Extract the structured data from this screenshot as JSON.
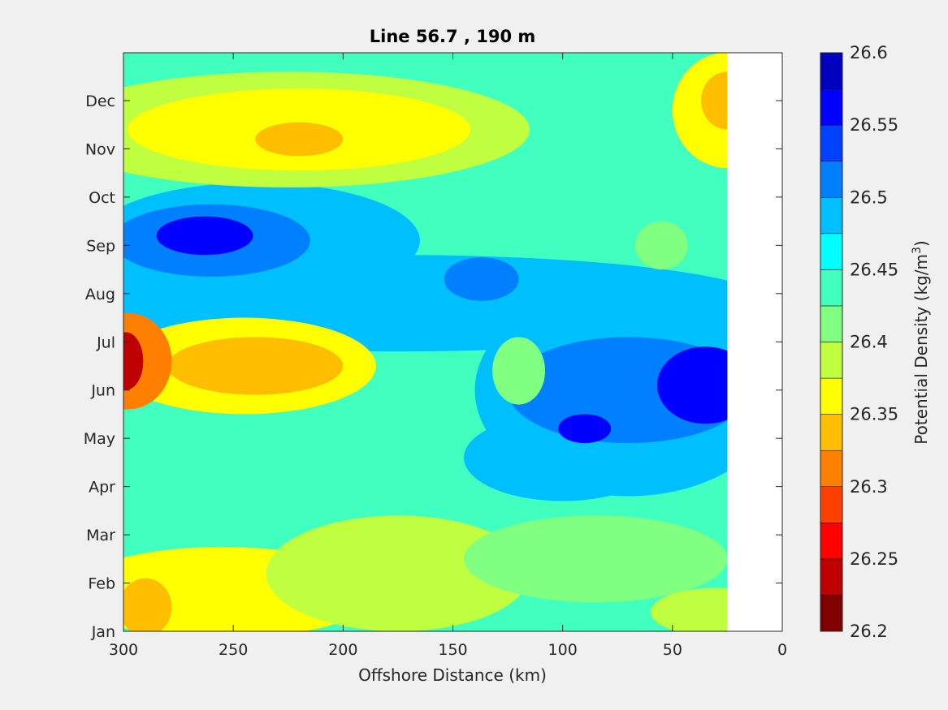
{
  "chart_data": {
    "type": "contour",
    "title": "Line 56.7 , 190 m",
    "xlabel": "Offshore Distance (km)",
    "xlim": [
      300,
      0
    ],
    "xticks": [
      300,
      250,
      200,
      150,
      100,
      50,
      0
    ],
    "ylabel": "",
    "yticks": [
      "Jan",
      "Feb",
      "Mar",
      "Apr",
      "May",
      "Jun",
      "Jul",
      "Aug",
      "Sep",
      "Oct",
      "Nov",
      "Dec"
    ],
    "data_extent_km": [
      300,
      25
    ],
    "colorbar": {
      "label_main": "Potential Density (kg/m",
      "label_sup": "3",
      "label_close": ")",
      "range": [
        26.2,
        26.6
      ],
      "tick_labels": [
        "26.6",
        "26.55",
        "26.5",
        "26.45",
        "26.4",
        "26.35",
        "26.3",
        "26.25",
        "26.2"
      ],
      "levels": [
        26.2,
        26.225,
        26.25,
        26.275,
        26.3,
        26.325,
        26.35,
        26.375,
        26.4,
        26.425,
        26.45,
        26.475,
        26.5,
        26.525,
        26.55,
        26.575,
        26.6
      ],
      "colors": [
        "#800000",
        "#bf0000",
        "#ff0000",
        "#ff4000",
        "#ff8000",
        "#ffbf00",
        "#ffff00",
        "#bfff40",
        "#80ff80",
        "#40ffbf",
        "#00ffff",
        "#00bfff",
        "#0080ff",
        "#0040ff",
        "#0000ff",
        "#0000bf"
      ]
    },
    "features": [
      {
        "km": 297,
        "month": "Jun",
        "density": 26.23
      },
      {
        "km": 240,
        "month": "Jun",
        "density": 26.34
      },
      {
        "km": 220,
        "month": "Nov",
        "density": 26.34
      },
      {
        "km": 290,
        "month": "Jan",
        "density": 26.34
      },
      {
        "km": 25,
        "month": "Dec",
        "density": 26.34
      },
      {
        "km": 265,
        "month": "Sep",
        "density": 26.56
      },
      {
        "km": 90,
        "month": "May",
        "density": 26.56
      },
      {
        "km": 30,
        "month": "Jun",
        "density": 26.56
      },
      {
        "km": 135,
        "month": "Aug",
        "density": 26.52
      }
    ]
  }
}
